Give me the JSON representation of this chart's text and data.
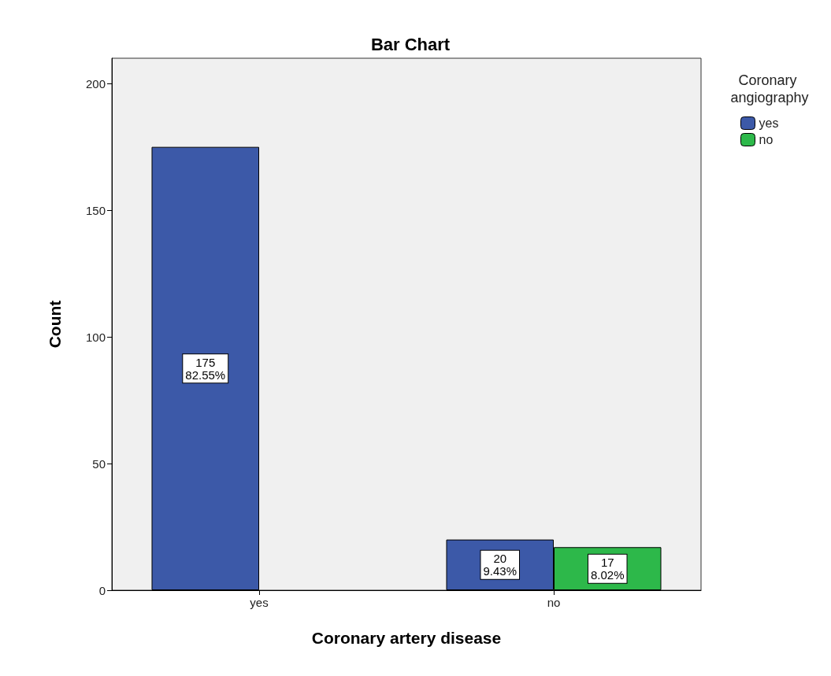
{
  "chart_data": {
    "type": "bar",
    "title": "Bar Chart",
    "xlabel": "Coronary artery disease",
    "ylabel": "Count",
    "legend_title": "Coronary angiography",
    "categories": [
      "yes",
      "no"
    ],
    "series": [
      {
        "name": "yes",
        "color": "#3c59a8",
        "values": [
          175,
          20
        ],
        "value_labels": [
          "175\n82.55%",
          "20\n9.43%"
        ]
      },
      {
        "name": "no",
        "color": "#2db84a",
        "values": [
          null,
          17
        ],
        "value_labels": [
          null,
          "17\n8.02%"
        ]
      }
    ],
    "ylim": [
      0,
      210
    ],
    "yticks": [
      0,
      50,
      100,
      150,
      200
    ],
    "grid": false,
    "legend": "top right"
  }
}
